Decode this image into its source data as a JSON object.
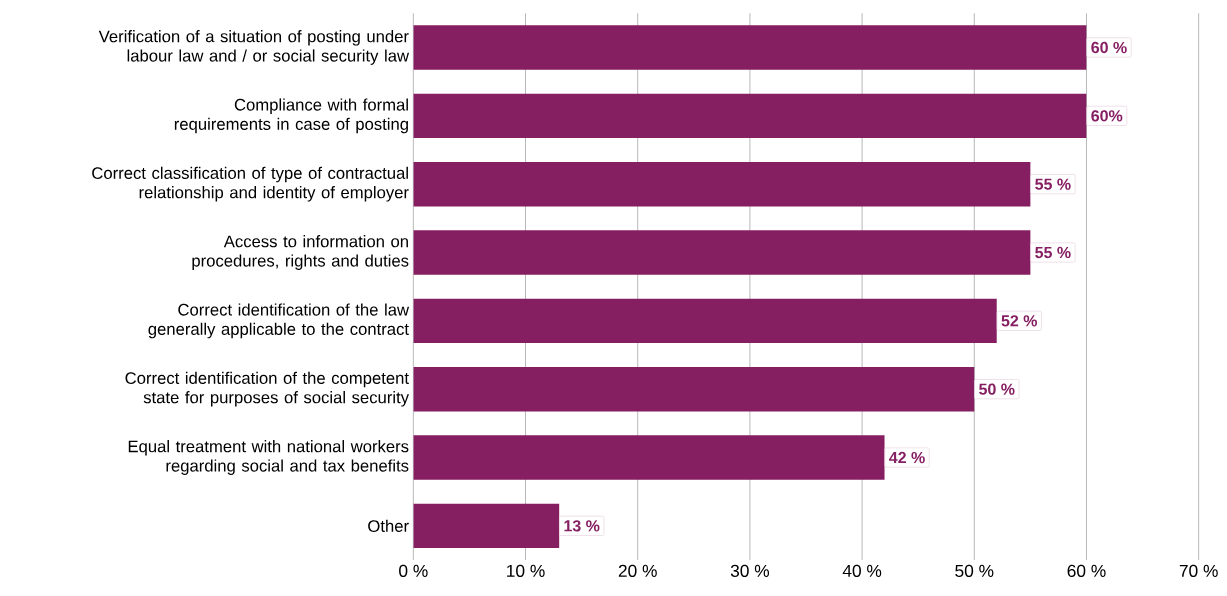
{
  "chart_data": {
    "type": "bar",
    "orientation": "horizontal",
    "categories": [
      "Verification of a situation of posting under labour law and / or social security law",
      "Compliance with formal requirements in case of posting",
      "Correct classification of type of contractual relationship and identity of employer",
      "Access to information on procedures, rights and duties",
      "Correct identification of the law generally applicable to the contract",
      "Correct identification of the competent state for purposes of social security",
      "Equal treatment with national workers regarding social and tax benefits",
      "Other"
    ],
    "values": [
      60,
      60,
      55,
      55,
      52,
      50,
      42,
      13
    ],
    "value_labels": [
      "60 %",
      "60%",
      "55 %",
      "55 %",
      "52 %",
      "50 %",
      "42 %",
      "13 %"
    ],
    "color": "#861e62",
    "xlim": [
      0,
      70
    ],
    "xticks": [
      {
        "value": 0,
        "label": "0 %"
      },
      {
        "value": 10,
        "label": "10 %"
      },
      {
        "value": 20,
        "label": "20 %"
      },
      {
        "value": 30,
        "label": "30 %"
      },
      {
        "value": 40,
        "label": "40 %"
      },
      {
        "value": 50,
        "label": "50 %"
      },
      {
        "value": 60,
        "label": "60 %"
      },
      {
        "value": 70,
        "label": "70 %"
      }
    ],
    "grid": "x"
  }
}
